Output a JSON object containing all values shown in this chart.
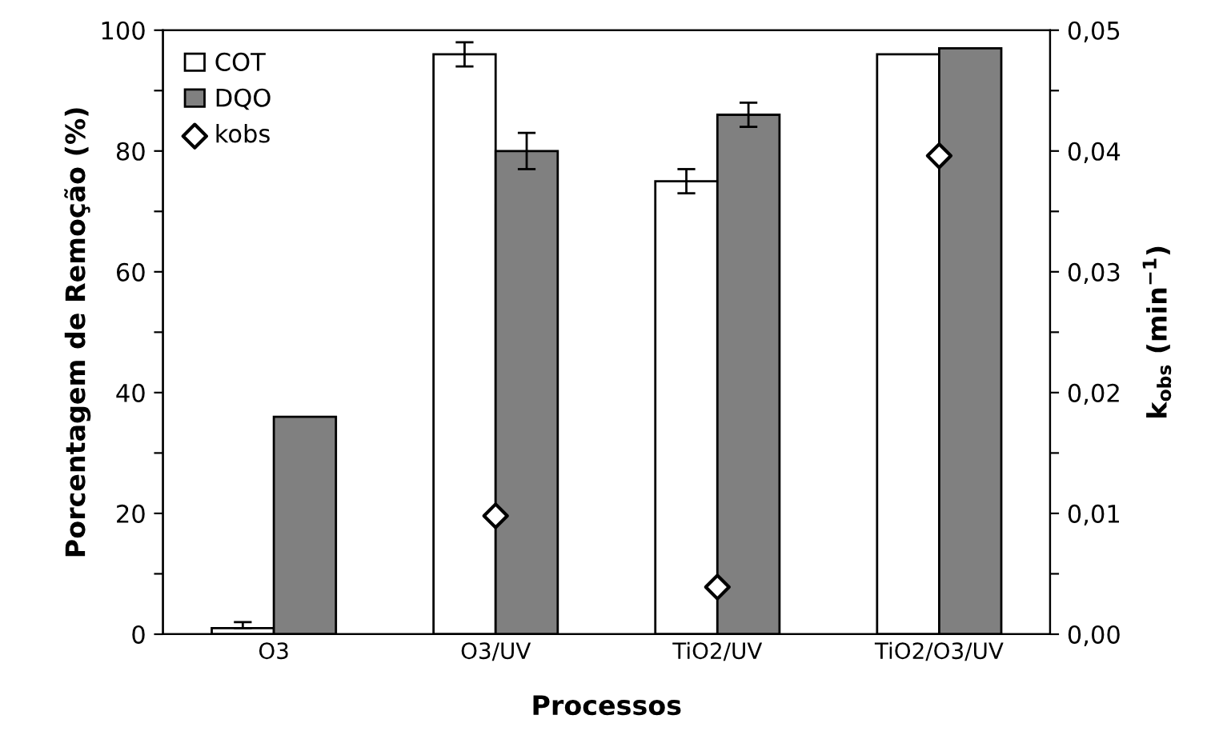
{
  "chart_data": {
    "type": "bar",
    "xlabel": "Processos",
    "ylabel": "Porcentagem de Remoção (%)",
    "y2label": "k$_{obs}$ (min$^{−1}$)",
    "categories": [
      "O3",
      "O3/UV",
      "TiO2/UV",
      "TiO2/O3/UV"
    ],
    "series": [
      {
        "name": "COT",
        "color": "#ffffff",
        "values": [
          1,
          96,
          75,
          96
        ],
        "errors": [
          [
            1,
            2
          ],
          2,
          2,
          null
        ]
      },
      {
        "name": "DQO",
        "color": "#808080",
        "values": [
          36,
          80,
          86,
          97
        ],
        "errors": [
          null,
          3,
          2,
          null
        ]
      },
      {
        "name": "kobs",
        "type": "scatter",
        "axis": "y2",
        "marker": "diamond",
        "color": "#ffffff",
        "values": [
          null,
          0.0098,
          0.0039,
          0.0396
        ]
      }
    ],
    "ylim": [
      0,
      100
    ],
    "yticks": [
      0,
      {
        "value": 10,
        "label": null
      },
      20,
      {
        "value": 30,
        "label": null
      },
      40,
      {
        "value": 50,
        "label": null
      },
      60,
      {
        "value": 70,
        "label": null
      },
      80,
      {
        "value": 90,
        "label": null
      },
      100
    ],
    "y2lim": [
      0,
      0.05
    ],
    "y2ticks": [
      {
        "value": 0,
        "label": "0,00"
      },
      {
        "value": 0.005,
        "label": null
      },
      {
        "value": 0.01,
        "label": "0,01"
      },
      {
        "value": 0.015,
        "label": null
      },
      {
        "value": 0.02,
        "label": "0,02"
      },
      {
        "value": 0.025,
        "label": null
      },
      {
        "value": 0.03,
        "label": "0,03"
      },
      {
        "value": 0.035,
        "label": null
      },
      {
        "value": 0.04,
        "label": "0,04"
      },
      {
        "value": 0.045,
        "label": null
      },
      {
        "value": 0.05,
        "label": "0,05"
      }
    ],
    "legend": "top left",
    "grid": false
  }
}
